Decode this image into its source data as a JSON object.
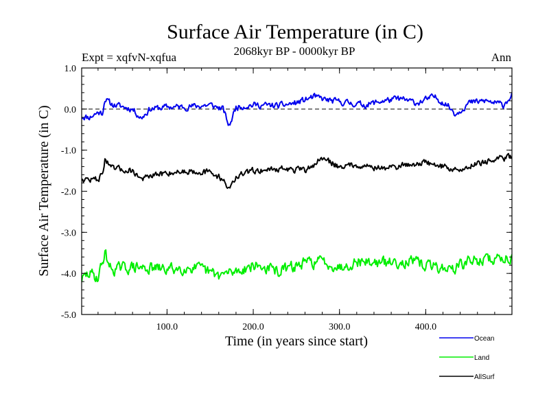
{
  "chart_data": {
    "type": "line",
    "title": "Surface Air Temperature (in C)",
    "experiment": "Expt = xqfvN-xqfua",
    "period": "2068kyr BP - 0000kyr BP",
    "season": "Ann",
    "xlabel": "Time (in years since start)",
    "ylabel": "Surface Air Temperature (in C)",
    "xlim": [
      1,
      500
    ],
    "ylim": [
      -5.0,
      1.0
    ],
    "xticks": [
      100,
      200,
      300,
      400
    ],
    "xtick_labels": [
      "100.0",
      "200.0",
      "300.0",
      "400.0"
    ],
    "yticks": [
      1.0,
      0.0,
      -1.0,
      -2.0,
      -3.0,
      -4.0,
      -5.0
    ],
    "ytick_labels": [
      "1.0",
      "0.0",
      "-1.0",
      "-2.0",
      "-3.0",
      "-4.0",
      "-5.0"
    ],
    "reference_line": 0.0,
    "legend_position": "bottom-right",
    "series": [
      {
        "name": "Ocean",
        "color": "#0000ee",
        "anchors": [
          [
            1,
            -0.18
          ],
          [
            10,
            -0.2
          ],
          [
            20,
            -0.08
          ],
          [
            25,
            -0.1
          ],
          [
            28,
            0.25
          ],
          [
            35,
            0.12
          ],
          [
            50,
            0.05
          ],
          [
            60,
            0.0
          ],
          [
            70,
            -0.22
          ],
          [
            80,
            0.0
          ],
          [
            100,
            0.05
          ],
          [
            120,
            0.05
          ],
          [
            150,
            0.1
          ],
          [
            165,
            0.0
          ],
          [
            172,
            -0.42
          ],
          [
            180,
            0.05
          ],
          [
            200,
            0.1
          ],
          [
            230,
            0.08
          ],
          [
            250,
            0.15
          ],
          [
            270,
            0.3
          ],
          [
            290,
            0.2
          ],
          [
            310,
            0.15
          ],
          [
            330,
            0.1
          ],
          [
            350,
            0.2
          ],
          [
            370,
            0.25
          ],
          [
            390,
            0.15
          ],
          [
            410,
            0.3
          ],
          [
            425,
            0.1
          ],
          [
            435,
            -0.12
          ],
          [
            450,
            0.15
          ],
          [
            470,
            0.2
          ],
          [
            490,
            0.1
          ],
          [
            500,
            0.35
          ]
        ],
        "amplitude": 0.12,
        "seed": 11
      },
      {
        "name": "Land",
        "color": "#00ee00",
        "anchors": [
          [
            1,
            -4.15
          ],
          [
            10,
            -4.0
          ],
          [
            20,
            -4.1
          ],
          [
            28,
            -3.5
          ],
          [
            35,
            -3.9
          ],
          [
            60,
            -3.85
          ],
          [
            100,
            -3.9
          ],
          [
            130,
            -3.85
          ],
          [
            160,
            -4.05
          ],
          [
            180,
            -3.95
          ],
          [
            200,
            -3.8
          ],
          [
            230,
            -3.95
          ],
          [
            260,
            -3.75
          ],
          [
            280,
            -3.7
          ],
          [
            300,
            -3.85
          ],
          [
            320,
            -3.7
          ],
          [
            350,
            -3.75
          ],
          [
            380,
            -3.7
          ],
          [
            400,
            -3.8
          ],
          [
            430,
            -3.9
          ],
          [
            450,
            -3.7
          ],
          [
            480,
            -3.65
          ],
          [
            500,
            -3.6
          ]
        ],
        "amplitude": 0.22,
        "seed": 29
      },
      {
        "name": "AllSurf",
        "color": "#000000",
        "anchors": [
          [
            1,
            -1.7
          ],
          [
            10,
            -1.72
          ],
          [
            20,
            -1.7
          ],
          [
            25,
            -1.6
          ],
          [
            28,
            -1.2
          ],
          [
            35,
            -1.45
          ],
          [
            60,
            -1.5
          ],
          [
            70,
            -1.7
          ],
          [
            100,
            -1.55
          ],
          [
            130,
            -1.5
          ],
          [
            150,
            -1.55
          ],
          [
            165,
            -1.7
          ],
          [
            172,
            -1.95
          ],
          [
            180,
            -1.65
          ],
          [
            200,
            -1.5
          ],
          [
            230,
            -1.45
          ],
          [
            260,
            -1.5
          ],
          [
            280,
            -1.2
          ],
          [
            300,
            -1.4
          ],
          [
            320,
            -1.35
          ],
          [
            350,
            -1.45
          ],
          [
            380,
            -1.35
          ],
          [
            400,
            -1.3
          ],
          [
            420,
            -1.4
          ],
          [
            440,
            -1.5
          ],
          [
            460,
            -1.3
          ],
          [
            480,
            -1.25
          ],
          [
            500,
            -1.15
          ]
        ],
        "amplitude": 0.12,
        "seed": 47
      }
    ]
  }
}
